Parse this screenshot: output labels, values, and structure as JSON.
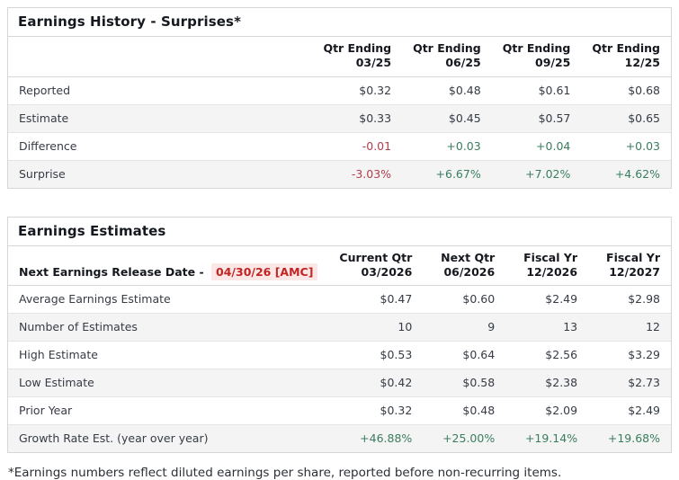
{
  "history": {
    "title": "Earnings History - Surprises*",
    "columns": [
      {
        "l1": "Qtr Ending",
        "l2": "03/25"
      },
      {
        "l1": "Qtr Ending",
        "l2": "06/25"
      },
      {
        "l1": "Qtr Ending",
        "l2": "09/25"
      },
      {
        "l1": "Qtr Ending",
        "l2": "12/25"
      }
    ],
    "rows": [
      {
        "label": "Reported",
        "values": [
          "$0.32",
          "$0.48",
          "$0.61",
          "$0.68"
        ]
      },
      {
        "label": "Estimate",
        "values": [
          "$0.33",
          "$0.45",
          "$0.57",
          "$0.65"
        ]
      },
      {
        "label": "Difference",
        "values": [
          "-0.01",
          "+0.03",
          "+0.04",
          "+0.03"
        ]
      },
      {
        "label": "Surprise",
        "values": [
          "-3.03%",
          "+6.67%",
          "+7.02%",
          "+4.62%"
        ]
      }
    ]
  },
  "estimates": {
    "title": "Earnings Estimates",
    "release_label": "Next Earnings Release Date - ",
    "release_date": "04/30/26 [AMC]",
    "columns": [
      {
        "l1": "Current Qtr",
        "l2": "03/2026"
      },
      {
        "l1": "Next Qtr",
        "l2": "06/2026"
      },
      {
        "l1": "Fiscal Yr",
        "l2": "12/2026"
      },
      {
        "l1": "Fiscal Yr",
        "l2": "12/2027"
      }
    ],
    "rows": [
      {
        "label": "Average Earnings Estimate",
        "values": [
          "$0.47",
          "$0.60",
          "$2.49",
          "$2.98"
        ]
      },
      {
        "label": "Number of Estimates",
        "values": [
          "10",
          "9",
          "13",
          "12"
        ]
      },
      {
        "label": "High Estimate",
        "values": [
          "$0.53",
          "$0.64",
          "$2.56",
          "$3.29"
        ]
      },
      {
        "label": "Low Estimate",
        "values": [
          "$0.42",
          "$0.58",
          "$2.38",
          "$2.73"
        ]
      },
      {
        "label": "Prior Year",
        "values": [
          "$0.32",
          "$0.48",
          "$2.09",
          "$2.49"
        ]
      },
      {
        "label": "Growth Rate Est. (year over year)",
        "values": [
          "+46.88%",
          "+25.00%",
          "+19.14%",
          "+19.68%"
        ]
      }
    ]
  },
  "footnote": "*Earnings numbers reflect diluted earnings per share, reported before non-recurring items.",
  "colors": {
    "negative": "#b03e4c",
    "positive": "#3a7d5e",
    "release_date_text": "#c22323",
    "release_date_bg": "#fbe7e5"
  }
}
